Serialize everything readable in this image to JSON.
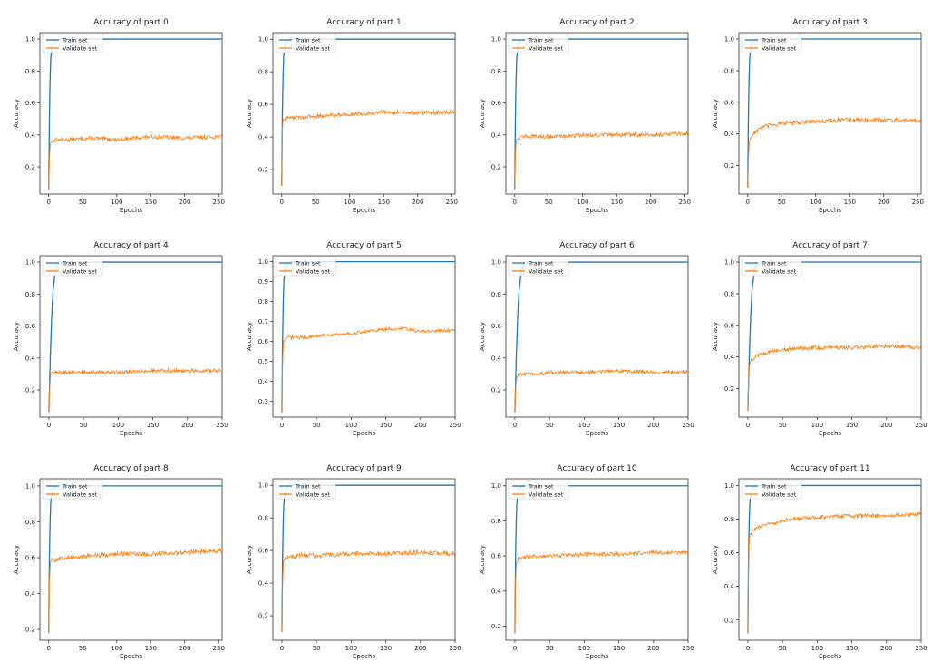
{
  "figure": {
    "rows": 3,
    "cols": 4
  },
  "style": {
    "train_color": "#1f77b4",
    "validate_color": "#ff7f0e"
  },
  "chart_data": [
    {
      "type": "line",
      "title": "Accuracy of part 0",
      "xlabel": "Epochs",
      "ylabel": "Accuracy",
      "xlim": [
        -13,
        255
      ],
      "ylim": [
        0.03,
        1.04
      ],
      "xticks": [
        "0",
        "50",
        "100",
        "150",
        "200",
        "250"
      ],
      "yticks": [
        "0.2",
        "0.4",
        "0.6",
        "0.8",
        "1.0"
      ],
      "legend": "top-left",
      "grid": false,
      "series": [
        {
          "name": "Train set",
          "x": [
            0,
            1,
            2,
            3,
            5,
            8,
            15,
            255
          ],
          "y": [
            0.06,
            0.5,
            0.75,
            0.88,
            0.96,
            0.99,
            1.0,
            1.0
          ]
        },
        {
          "name": "Validate set",
          "x": [
            0,
            1,
            2,
            3,
            5,
            10,
            30,
            60,
            100,
            150,
            200,
            250,
            255
          ],
          "y": [
            0.06,
            0.25,
            0.33,
            0.35,
            0.36,
            0.37,
            0.37,
            0.38,
            0.37,
            0.39,
            0.38,
            0.39,
            0.39
          ],
          "noise": 0.012
        }
      ]
    },
    {
      "type": "line",
      "title": "Accuracy of part 1",
      "xlabel": "Epochs",
      "ylabel": "Accuracy",
      "xlim": [
        -13,
        255
      ],
      "ylim": [
        0.05,
        1.04
      ],
      "xticks": [
        "0",
        "50",
        "100",
        "150",
        "200",
        "250"
      ],
      "yticks": [
        "0.2",
        "0.4",
        "0.6",
        "0.8",
        "1.0"
      ],
      "legend": "top-left",
      "grid": false,
      "series": [
        {
          "name": "Train set",
          "x": [
            0,
            1,
            2,
            3,
            5,
            8,
            15,
            255
          ],
          "y": [
            0.1,
            0.55,
            0.78,
            0.9,
            0.96,
            0.99,
            1.0,
            1.0
          ]
        },
        {
          "name": "Validate set",
          "x": [
            0,
            1,
            2,
            3,
            5,
            10,
            30,
            60,
            100,
            150,
            200,
            250,
            255
          ],
          "y": [
            0.1,
            0.45,
            0.5,
            0.51,
            0.51,
            0.52,
            0.52,
            0.53,
            0.54,
            0.55,
            0.55,
            0.55,
            0.55
          ],
          "noise": 0.012
        }
      ]
    },
    {
      "type": "line",
      "title": "Accuracy of part 2",
      "xlabel": "Epochs",
      "ylabel": "Accuracy",
      "xlim": [
        -13,
        255
      ],
      "ylim": [
        0.03,
        1.04
      ],
      "xticks": [
        "0",
        "50",
        "100",
        "150",
        "200",
        "250"
      ],
      "yticks": [
        "0.2",
        "0.4",
        "0.6",
        "0.8",
        "1.0"
      ],
      "legend": "top-left",
      "grid": false,
      "series": [
        {
          "name": "Train set",
          "x": [
            0,
            1,
            2,
            3,
            5,
            8,
            15,
            255
          ],
          "y": [
            0.06,
            0.5,
            0.75,
            0.88,
            0.96,
            0.99,
            1.0,
            1.0
          ]
        },
        {
          "name": "Validate set",
          "x": [
            0,
            1,
            2,
            3,
            5,
            10,
            30,
            60,
            100,
            150,
            200,
            250,
            255
          ],
          "y": [
            0.06,
            0.28,
            0.35,
            0.37,
            0.38,
            0.39,
            0.39,
            0.39,
            0.4,
            0.4,
            0.4,
            0.41,
            0.41
          ],
          "noise": 0.012
        }
      ]
    },
    {
      "type": "line",
      "title": "Accuracy of part 3",
      "xlabel": "Epochs",
      "ylabel": "Accuracy",
      "xlim": [
        -13,
        255
      ],
      "ylim": [
        0.02,
        1.04
      ],
      "xticks": [
        "0",
        "50",
        "100",
        "150",
        "200",
        "250"
      ],
      "yticks": [
        "0.2",
        "0.4",
        "0.6",
        "0.8",
        "1.0"
      ],
      "legend": "top-left",
      "grid": false,
      "series": [
        {
          "name": "Train set",
          "x": [
            0,
            1,
            2,
            3,
            5,
            8,
            15,
            255
          ],
          "y": [
            0.06,
            0.5,
            0.75,
            0.88,
            0.96,
            0.99,
            1.0,
            1.0
          ]
        },
        {
          "name": "Validate set",
          "x": [
            0,
            1,
            2,
            3,
            5,
            10,
            20,
            40,
            60,
            100,
            150,
            200,
            250,
            255
          ],
          "y": [
            0.06,
            0.25,
            0.33,
            0.36,
            0.38,
            0.41,
            0.44,
            0.46,
            0.47,
            0.48,
            0.49,
            0.49,
            0.48,
            0.48
          ],
          "noise": 0.014
        }
      ]
    },
    {
      "type": "line",
      "title": "Accuracy of part 4",
      "xlabel": "Epochs",
      "ylabel": "Accuracy",
      "xlim": [
        -13,
        250
      ],
      "ylim": [
        0.03,
        1.04
      ],
      "xticks": [
        "0",
        "50",
        "100",
        "150",
        "200",
        "250"
      ],
      "yticks": [
        "0.2",
        "0.4",
        "0.6",
        "0.8",
        "1.0"
      ],
      "legend": "top-left",
      "grid": false,
      "series": [
        {
          "name": "Train set",
          "x": [
            0,
            2,
            4,
            6,
            9,
            12,
            20,
            250
          ],
          "y": [
            0.06,
            0.4,
            0.65,
            0.82,
            0.93,
            0.98,
            1.0,
            1.0
          ]
        },
        {
          "name": "Validate set",
          "x": [
            0,
            1,
            2,
            3,
            5,
            10,
            30,
            60,
            100,
            150,
            200,
            250
          ],
          "y": [
            0.06,
            0.2,
            0.27,
            0.3,
            0.31,
            0.31,
            0.31,
            0.31,
            0.31,
            0.32,
            0.32,
            0.32
          ],
          "noise": 0.011
        }
      ]
    },
    {
      "type": "line",
      "title": "Accuracy of part 5",
      "xlabel": "Epochs",
      "ylabel": "Accuracy",
      "xlim": [
        -13,
        250
      ],
      "ylim": [
        0.22,
        1.03
      ],
      "xticks": [
        "0",
        "50",
        "100",
        "150",
        "200",
        "250"
      ],
      "yticks": [
        "0.3",
        "0.4",
        "0.5",
        "0.6",
        "0.7",
        "0.8",
        "0.9",
        "1.0"
      ],
      "legend": "top-left",
      "grid": false,
      "series": [
        {
          "name": "Train set",
          "x": [
            0,
            1,
            2,
            3,
            5,
            8,
            15,
            250
          ],
          "y": [
            0.24,
            0.6,
            0.8,
            0.91,
            0.97,
            0.99,
            1.0,
            1.0
          ]
        },
        {
          "name": "Validate set",
          "x": [
            0,
            1,
            2,
            3,
            5,
            10,
            30,
            60,
            100,
            150,
            175,
            200,
            250
          ],
          "y": [
            0.24,
            0.5,
            0.58,
            0.6,
            0.61,
            0.62,
            0.62,
            0.63,
            0.64,
            0.66,
            0.665,
            0.65,
            0.655
          ],
          "noise": 0.008
        }
      ]
    },
    {
      "type": "line",
      "title": "Accuracy of part 6",
      "xlabel": "Epochs",
      "ylabel": "Accuracy",
      "xlim": [
        -13,
        250
      ],
      "ylim": [
        0.03,
        1.04
      ],
      "xticks": [
        "0",
        "50",
        "100",
        "150",
        "200",
        "250"
      ],
      "yticks": [
        "0.2",
        "0.4",
        "0.6",
        "0.8",
        "1.0"
      ],
      "legend": "top-left",
      "grid": false,
      "series": [
        {
          "name": "Train set",
          "x": [
            0,
            2,
            4,
            6,
            9,
            12,
            20,
            250
          ],
          "y": [
            0.06,
            0.4,
            0.65,
            0.82,
            0.93,
            0.98,
            1.0,
            1.0
          ]
        },
        {
          "name": "Validate set",
          "x": [
            0,
            1,
            2,
            3,
            5,
            10,
            30,
            60,
            100,
            150,
            200,
            250
          ],
          "y": [
            0.06,
            0.2,
            0.26,
            0.28,
            0.29,
            0.3,
            0.3,
            0.31,
            0.31,
            0.32,
            0.31,
            0.31
          ],
          "noise": 0.011
        }
      ]
    },
    {
      "type": "line",
      "title": "Accuracy of part 7",
      "xlabel": "Epochs",
      "ylabel": "Accuracy",
      "xlim": [
        -13,
        250
      ],
      "ylim": [
        0.02,
        1.04
      ],
      "xticks": [
        "0",
        "50",
        "100",
        "150",
        "200",
        "250"
      ],
      "yticks": [
        "0.2",
        "0.4",
        "0.6",
        "0.8",
        "1.0"
      ],
      "legend": "top-left",
      "grid": false,
      "series": [
        {
          "name": "Train set",
          "x": [
            0,
            2,
            4,
            6,
            9,
            12,
            20,
            250
          ],
          "y": [
            0.06,
            0.4,
            0.65,
            0.82,
            0.93,
            0.98,
            1.0,
            1.0
          ]
        },
        {
          "name": "Validate set",
          "x": [
            0,
            1,
            2,
            3,
            5,
            10,
            20,
            40,
            60,
            100,
            150,
            200,
            250
          ],
          "y": [
            0.06,
            0.25,
            0.33,
            0.36,
            0.38,
            0.4,
            0.42,
            0.44,
            0.45,
            0.46,
            0.46,
            0.47,
            0.46
          ],
          "noise": 0.013
        }
      ]
    },
    {
      "type": "line",
      "title": "Accuracy of part 8",
      "xlabel": "Epochs",
      "ylabel": "Accuracy",
      "xlim": [
        -13,
        255
      ],
      "ylim": [
        0.14,
        1.04
      ],
      "xticks": [
        "0",
        "50",
        "100",
        "150",
        "200",
        "250"
      ],
      "yticks": [
        "0.2",
        "0.4",
        "0.6",
        "0.8",
        "1.0"
      ],
      "legend": "top-left",
      "grid": false,
      "series": [
        {
          "name": "Train set",
          "x": [
            0,
            1,
            2,
            3,
            5,
            8,
            15,
            255
          ],
          "y": [
            0.18,
            0.6,
            0.8,
            0.91,
            0.97,
            0.99,
            1.0,
            1.0
          ]
        },
        {
          "name": "Validate set",
          "x": [
            0,
            1,
            2,
            3,
            5,
            10,
            30,
            60,
            100,
            150,
            200,
            250,
            255
          ],
          "y": [
            0.18,
            0.45,
            0.55,
            0.58,
            0.59,
            0.59,
            0.6,
            0.61,
            0.62,
            0.62,
            0.63,
            0.64,
            0.64
          ],
          "noise": 0.012
        }
      ]
    },
    {
      "type": "line",
      "title": "Accuracy of part 9",
      "xlabel": "Epochs",
      "ylabel": "Accuracy",
      "xlim": [
        -13,
        250
      ],
      "ylim": [
        0.05,
        1.04
      ],
      "xticks": [
        "0",
        "50",
        "100",
        "150",
        "200",
        "250"
      ],
      "yticks": [
        "0.2",
        "0.4",
        "0.6",
        "0.8",
        "1.0"
      ],
      "legend": "top-left",
      "grid": false,
      "series": [
        {
          "name": "Train set",
          "x": [
            0,
            1,
            2,
            3,
            5,
            8,
            15,
            250
          ],
          "y": [
            0.1,
            0.55,
            0.78,
            0.9,
            0.96,
            0.99,
            1.0,
            1.0
          ]
        },
        {
          "name": "Validate set",
          "x": [
            0,
            1,
            2,
            3,
            5,
            10,
            30,
            60,
            100,
            150,
            200,
            250
          ],
          "y": [
            0.1,
            0.4,
            0.5,
            0.54,
            0.55,
            0.56,
            0.57,
            0.57,
            0.58,
            0.58,
            0.59,
            0.58
          ],
          "noise": 0.014
        }
      ]
    },
    {
      "type": "line",
      "title": "Accuracy of part 10",
      "xlabel": "Epochs",
      "ylabel": "Accuracy",
      "xlim": [
        -13,
        250
      ],
      "ylim": [
        0.12,
        1.04
      ],
      "xticks": [
        "0",
        "50",
        "100",
        "150",
        "200",
        "250"
      ],
      "yticks": [
        "0.2",
        "0.4",
        "0.6",
        "0.8",
        "1.0"
      ],
      "legend": "top-left",
      "grid": false,
      "series": [
        {
          "name": "Train set",
          "x": [
            0,
            1,
            2,
            3,
            5,
            8,
            15,
            250
          ],
          "y": [
            0.16,
            0.6,
            0.8,
            0.91,
            0.97,
            0.99,
            1.0,
            1.0
          ]
        },
        {
          "name": "Validate set",
          "x": [
            0,
            1,
            2,
            3,
            5,
            10,
            30,
            60,
            100,
            150,
            200,
            250
          ],
          "y": [
            0.16,
            0.45,
            0.55,
            0.57,
            0.58,
            0.59,
            0.6,
            0.6,
            0.61,
            0.61,
            0.62,
            0.62
          ],
          "noise": 0.011
        }
      ]
    },
    {
      "type": "line",
      "title": "Accuracy of part 11",
      "xlabel": "Epochs",
      "ylabel": "Accuracy",
      "xlim": [
        -13,
        250
      ],
      "ylim": [
        0.08,
        1.04
      ],
      "xticks": [
        "0",
        "50",
        "100",
        "150",
        "200",
        "250"
      ],
      "yticks": [
        "0.2",
        "0.4",
        "0.6",
        "0.8",
        "1.0"
      ],
      "legend": "top-left",
      "grid": false,
      "series": [
        {
          "name": "Train set",
          "x": [
            0,
            1,
            2,
            3,
            5,
            8,
            15,
            250
          ],
          "y": [
            0.12,
            0.6,
            0.8,
            0.91,
            0.97,
            0.99,
            1.0,
            1.0
          ]
        },
        {
          "name": "Validate set",
          "x": [
            0,
            1,
            2,
            3,
            5,
            10,
            20,
            40,
            60,
            100,
            150,
            200,
            250
          ],
          "y": [
            0.12,
            0.55,
            0.68,
            0.71,
            0.72,
            0.74,
            0.76,
            0.78,
            0.8,
            0.81,
            0.82,
            0.82,
            0.83
          ],
          "noise": 0.011
        }
      ]
    }
  ]
}
